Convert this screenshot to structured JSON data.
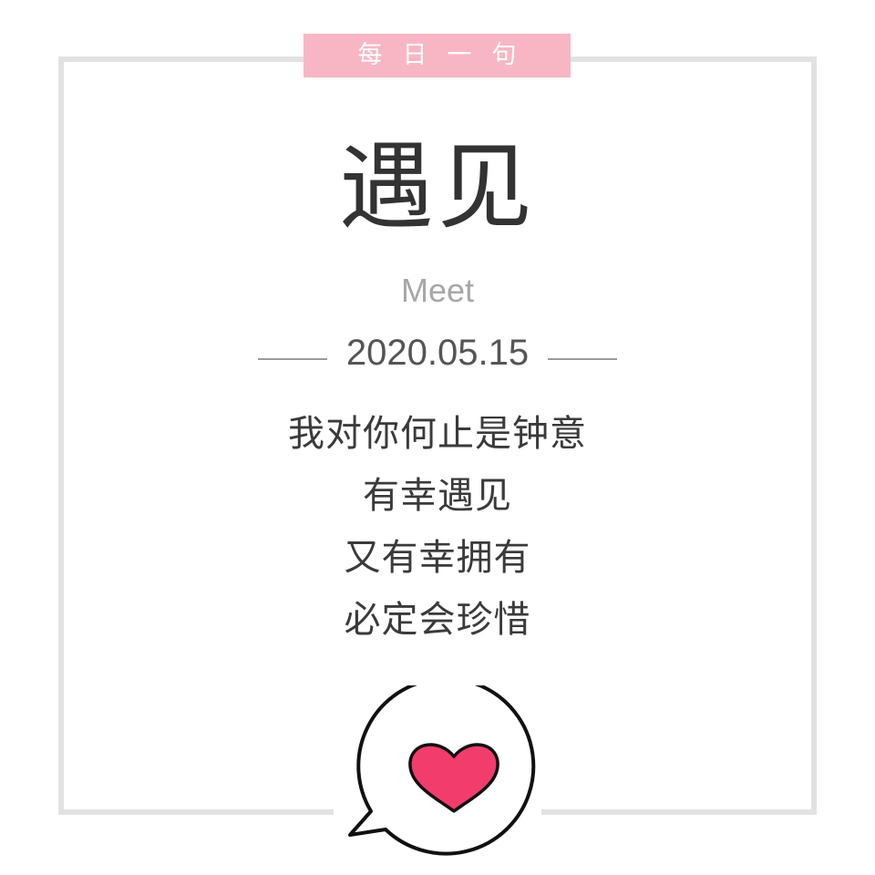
{
  "badge": {
    "label": "每日一句"
  },
  "title": "遇见",
  "subtitle": "Meet",
  "date": "2020.05.15",
  "verse": [
    "我对你何止是钟意",
    "有幸遇见",
    "又有幸拥有",
    "必定会珍惜"
  ],
  "colors": {
    "badge_bg": "#f8b6c5",
    "frame": "#e2e2e2",
    "heart": "#f23c6b",
    "title": "#333333"
  },
  "icons": {
    "bubble": "speech-bubble-icon",
    "heart": "heart-icon"
  }
}
